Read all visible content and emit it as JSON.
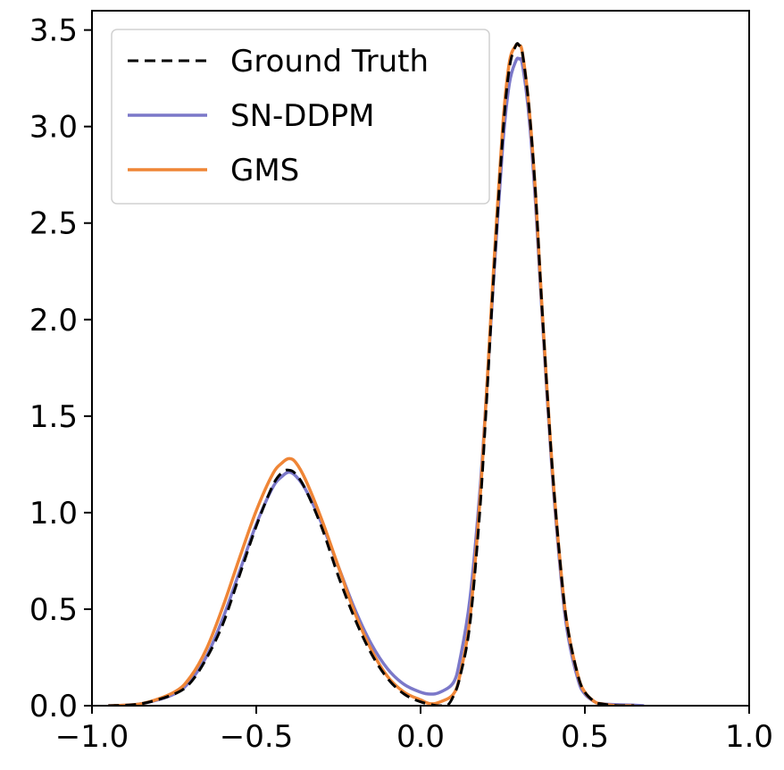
{
  "chart_data": {
    "type": "line",
    "title": "",
    "xlabel": "",
    "ylabel": "",
    "xlim": [
      -1.0,
      1.0
    ],
    "ylim": [
      0.0,
      3.6
    ],
    "grid": false,
    "legend_position": "top-left",
    "xticks": [
      -1.0,
      -0.5,
      0.0,
      0.5,
      1.0
    ],
    "xtick_labels": [
      "−1.0",
      "−0.5",
      "0.0",
      "0.5",
      "1.0"
    ],
    "yticks": [
      0.0,
      0.5,
      1.0,
      1.5,
      2.0,
      2.5,
      3.0,
      3.5
    ],
    "ytick_labels": [
      "0.0",
      "0.5",
      "1.0",
      "1.5",
      "2.0",
      "2.5",
      "3.0",
      "3.5"
    ],
    "series": [
      {
        "name": "Ground Truth",
        "color": "#000000",
        "dash": true,
        "x": [
          -0.95,
          -0.85,
          -0.75,
          -0.7,
          -0.65,
          -0.6,
          -0.55,
          -0.5,
          -0.45,
          -0.42,
          -0.4,
          -0.38,
          -0.35,
          -0.3,
          -0.25,
          -0.2,
          -0.15,
          -0.1,
          -0.05,
          0.0,
          0.05,
          0.08,
          0.1,
          0.12,
          0.15,
          0.18,
          0.2,
          0.22,
          0.25,
          0.27,
          0.29,
          0.3,
          0.31,
          0.33,
          0.35,
          0.37,
          0.4,
          0.43,
          0.45,
          0.48,
          0.5,
          0.53,
          0.55,
          0.6,
          0.65
        ],
        "y": [
          0.0,
          0.01,
          0.06,
          0.12,
          0.25,
          0.43,
          0.68,
          0.93,
          1.14,
          1.21,
          1.22,
          1.2,
          1.12,
          0.92,
          0.67,
          0.45,
          0.27,
          0.14,
          0.06,
          0.02,
          0.0,
          0.0,
          0.05,
          0.15,
          0.42,
          1.0,
          1.55,
          2.15,
          2.95,
          3.3,
          3.42,
          3.42,
          3.38,
          3.1,
          2.65,
          2.05,
          1.25,
          0.65,
          0.38,
          0.15,
          0.07,
          0.02,
          0.01,
          0.0,
          0.0
        ]
      },
      {
        "name": "SN-DDPM",
        "color": "#7b78c9",
        "dash": false,
        "x": [
          -0.95,
          -0.85,
          -0.75,
          -0.7,
          -0.65,
          -0.6,
          -0.55,
          -0.5,
          -0.45,
          -0.42,
          -0.4,
          -0.38,
          -0.35,
          -0.3,
          -0.25,
          -0.2,
          -0.15,
          -0.1,
          -0.05,
          0.0,
          0.03,
          0.06,
          0.1,
          0.12,
          0.15,
          0.18,
          0.2,
          0.22,
          0.25,
          0.27,
          0.29,
          0.3,
          0.31,
          0.33,
          0.35,
          0.37,
          0.4,
          0.43,
          0.45,
          0.48,
          0.5,
          0.53,
          0.55,
          0.6,
          0.65,
          0.68
        ],
        "y": [
          0.0,
          0.01,
          0.06,
          0.13,
          0.26,
          0.46,
          0.7,
          0.94,
          1.13,
          1.19,
          1.21,
          1.19,
          1.12,
          0.94,
          0.72,
          0.5,
          0.32,
          0.19,
          0.11,
          0.07,
          0.06,
          0.07,
          0.12,
          0.24,
          0.55,
          1.1,
          1.6,
          2.15,
          2.9,
          3.22,
          3.34,
          3.35,
          3.32,
          3.05,
          2.6,
          2.02,
          1.22,
          0.62,
          0.35,
          0.13,
          0.06,
          0.02,
          0.01,
          0.005,
          0.003,
          0.0
        ]
      },
      {
        "name": "GMS",
        "color": "#ef8536",
        "dash": false,
        "x": [
          -0.95,
          -0.85,
          -0.75,
          -0.7,
          -0.65,
          -0.6,
          -0.55,
          -0.5,
          -0.45,
          -0.42,
          -0.4,
          -0.38,
          -0.35,
          -0.3,
          -0.25,
          -0.2,
          -0.15,
          -0.1,
          -0.05,
          0.0,
          0.03,
          0.06,
          0.1,
          0.12,
          0.15,
          0.18,
          0.2,
          0.22,
          0.25,
          0.27,
          0.29,
          0.3,
          0.31,
          0.33,
          0.35,
          0.37,
          0.4,
          0.43,
          0.45,
          0.48,
          0.5,
          0.53,
          0.55,
          0.6,
          0.65
        ],
        "y": [
          0.0,
          0.01,
          0.07,
          0.15,
          0.3,
          0.52,
          0.77,
          1.01,
          1.2,
          1.26,
          1.28,
          1.26,
          1.17,
          0.96,
          0.72,
          0.48,
          0.29,
          0.15,
          0.07,
          0.03,
          0.01,
          0.02,
          0.06,
          0.16,
          0.45,
          1.05,
          1.6,
          2.2,
          3.0,
          3.33,
          3.42,
          3.42,
          3.38,
          3.1,
          2.65,
          2.05,
          1.25,
          0.65,
          0.38,
          0.15,
          0.07,
          0.02,
          0.01,
          0.0,
          0.0
        ]
      }
    ]
  }
}
